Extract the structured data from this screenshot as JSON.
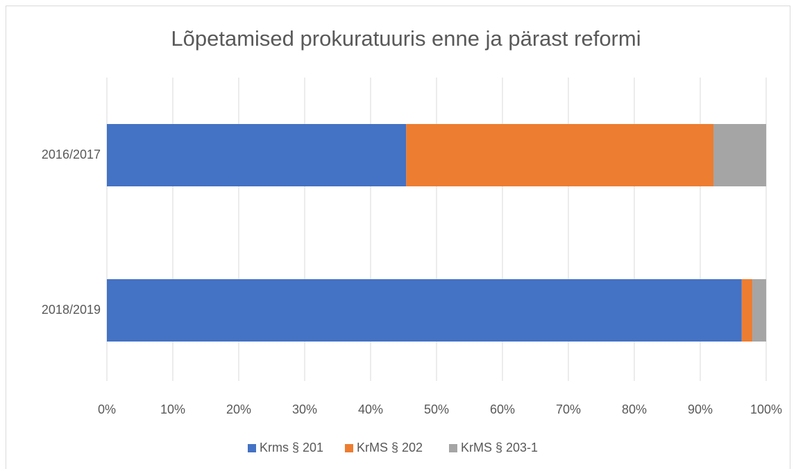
{
  "chart_data": {
    "type": "bar",
    "orientation": "horizontal",
    "stacked": true,
    "title": "Lõpetamised prokuratuuris enne ja pärast reformi",
    "categories": [
      "2016/2017",
      "2018/2019"
    ],
    "series": [
      {
        "name": "Krms § 201",
        "color": "#4472c4",
        "values": [
          45.4,
          96.3
        ]
      },
      {
        "name": "KrMS § 202",
        "color": "#ed7d31",
        "values": [
          46.6,
          1.6
        ]
      },
      {
        "name": "KrMS § 203-1",
        "color": "#a5a5a5",
        "values": [
          8.0,
          2.1
        ]
      }
    ],
    "xlim": [
      0,
      100
    ],
    "xticks": [
      {
        "value": 0,
        "label": "0%"
      },
      {
        "value": 10,
        "label": "10%"
      },
      {
        "value": 20,
        "label": "20%"
      },
      {
        "value": 30,
        "label": "30%"
      },
      {
        "value": 40,
        "label": "40%"
      },
      {
        "value": 50,
        "label": "50%"
      },
      {
        "value": 60,
        "label": "60%"
      },
      {
        "value": 70,
        "label": "70%"
      },
      {
        "value": 80,
        "label": "80%"
      },
      {
        "value": 90,
        "label": "90%"
      },
      {
        "value": 100,
        "label": "100%"
      }
    ],
    "grid": true,
    "legend": "bottom"
  }
}
